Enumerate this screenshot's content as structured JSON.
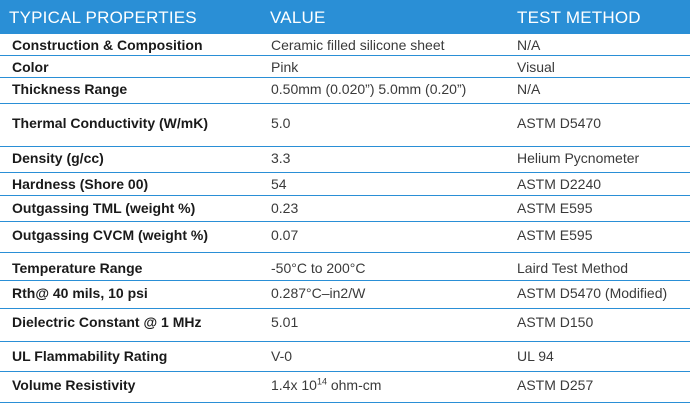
{
  "header": {
    "property": "TYPICAL PROPERTIES",
    "value": "VALUE",
    "method": "TEST METHOD"
  },
  "rows": [
    {
      "property": "Construction & Composition",
      "value": "Ceramic filled silicone sheet",
      "method": "N/A"
    },
    {
      "property": "Color",
      "value": "Pink",
      "method": "Visual"
    },
    {
      "property": "Thickness Range",
      "value": "0.50mm (0.020”) 5.0mm (0.20”)",
      "method": "N/A"
    },
    {
      "property": "Thermal Conductivity (W/mK)",
      "value": "5.0",
      "method": "ASTM D5470"
    },
    {
      "property": "Density (g/cc)",
      "value": "3.3",
      "method": "Helium Pycnometer"
    },
    {
      "property": "Hardness (Shore 00)",
      "value": "54",
      "method": "ASTM D2240"
    },
    {
      "property": "Outgassing TML (weight %)",
      "value": "0.23",
      "method": "ASTM E595"
    },
    {
      "property": "Outgassing CVCM (weight %)",
      "value": "0.07",
      "method": "ASTM E595"
    },
    {
      "property": "Temperature Range",
      "value": "-50°C to 200°C",
      "method": "Laird Test Method"
    },
    {
      "property": "Rth@ 40 mils, 10 psi",
      "value": "0.287°C–in2/W",
      "method": "ASTM D5470 (Modified)"
    },
    {
      "property": "Dielectric Constant @ 1 MHz",
      "value": "5.01",
      "method": "ASTM D150"
    },
    {
      "property": "UL Flammability Rating",
      "value": "V-0",
      "method": "UL 94"
    },
    {
      "property": "Volume Resistivity",
      "value_base": "1.4x 10",
      "value_exp": "14",
      "value_unit": " ohm-cm",
      "method": "ASTM D257"
    }
  ]
}
